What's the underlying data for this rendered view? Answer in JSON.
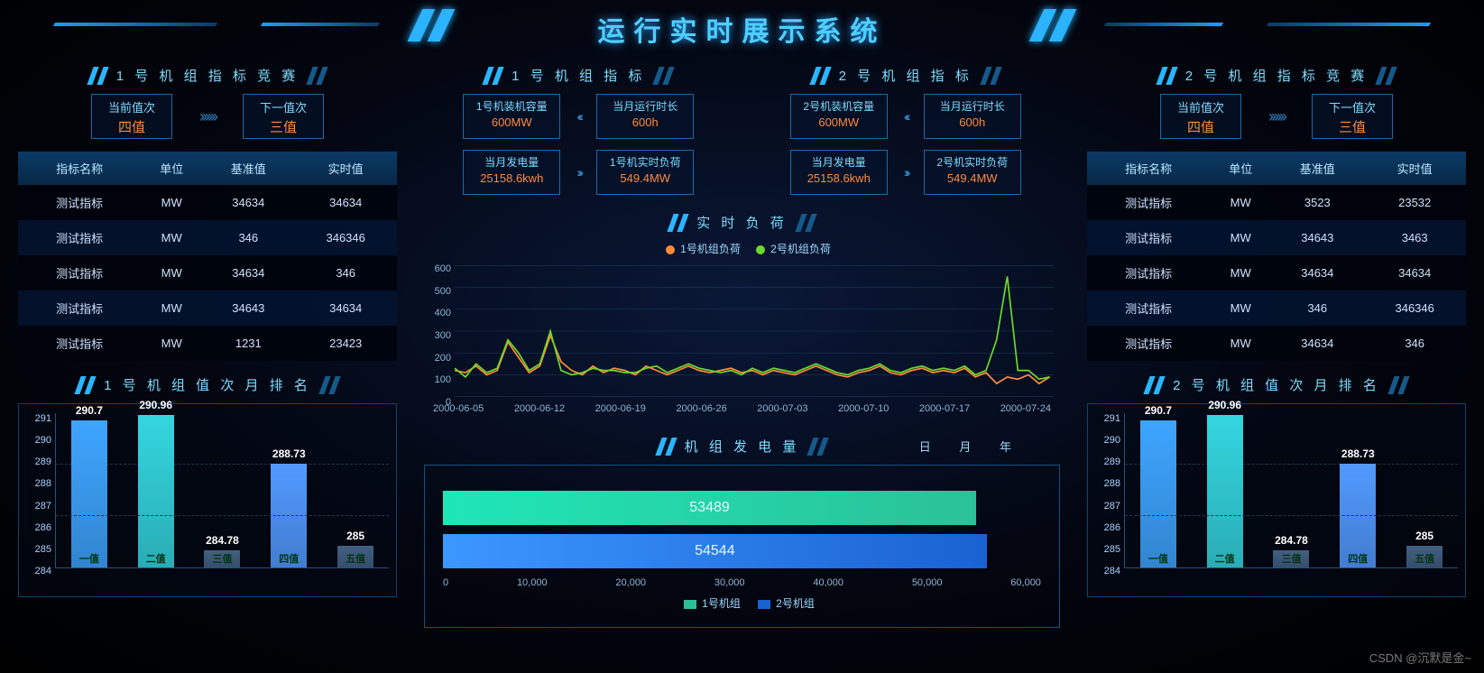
{
  "title": "运行实时展示系统",
  "watermark": "CSDN @沉默是金~",
  "shift": {
    "current_label": "当前值次",
    "next_label": "下一值次",
    "current_value": "四值",
    "next_value": "三值",
    "arrows": "››››››"
  },
  "comp_left": {
    "header": "1 号 机 组 指 标 竞 赛",
    "cols": [
      "指标名称",
      "单位",
      "基准值",
      "实时值"
    ],
    "rows": [
      [
        "测试指标",
        "MW",
        "34634",
        "34634"
      ],
      [
        "测试指标",
        "MW",
        "346",
        "346346"
      ],
      [
        "测试指标",
        "MW",
        "34634",
        "346"
      ],
      [
        "测试指标",
        "MW",
        "34643",
        "34634"
      ],
      [
        "测试指标",
        "MW",
        "1231",
        "23423"
      ]
    ]
  },
  "comp_right": {
    "header": "2 号 机 组 指 标 竞 赛",
    "cols": [
      "指标名称",
      "单位",
      "基准值",
      "实时值"
    ],
    "rows": [
      [
        "测试指标",
        "MW",
        "3523",
        "23532"
      ],
      [
        "测试指标",
        "MW",
        "34643",
        "3463"
      ],
      [
        "测试指标",
        "MW",
        "34634",
        "34634"
      ],
      [
        "测试指标",
        "MW",
        "346",
        "346346"
      ],
      [
        "测试指标",
        "MW",
        "34634",
        "346"
      ]
    ]
  },
  "rank": {
    "left_header": "1 号 机 组 值 次 月 排 名",
    "right_header": "2 号 机 组 值 次 月 排 名",
    "y_ticks": [
      "291",
      "290",
      "289",
      "288",
      "287",
      "286",
      "285",
      "284"
    ],
    "ymin": 284,
    "ymax": 291,
    "categories": [
      "一值",
      "二值",
      "三值",
      "四值",
      "五值"
    ],
    "values": [
      290.7,
      290.96,
      284.78,
      288.73,
      285
    ],
    "colors": [
      "#3ea5ff",
      "#34d6df",
      "#425f82",
      "#529aff",
      "#425f82"
    ],
    "grid_color": "#1a3a58"
  },
  "unit1": {
    "header": "1 号 机 组 指 标",
    "cap_label": "1号机装机容量",
    "cap_value": "600MW",
    "runtime_label": "当月运行时长",
    "runtime_value": "600h",
    "gen_label": "当月发电量",
    "gen_value": "25158.6kwh",
    "load_label": "1号机实时负荷",
    "load_value": "549.4MW",
    "arrow_left": "‹‹‹‹‹‹",
    "arrow_right": "››››››"
  },
  "unit2": {
    "header": "2 号 机 组 指 标",
    "cap_label": "2号机装机容量",
    "cap_value": "600MW",
    "runtime_label": "当月运行时长",
    "runtime_value": "600h",
    "gen_label": "当月发电量",
    "gen_value": "25158.6kwh",
    "load_label": "2号机实时负荷",
    "load_value": "549.4MW"
  },
  "realtime_load": {
    "header": "实 时 负 荷",
    "legend1": "1号机组负荷",
    "legend2": "2号机组负荷",
    "legend1_color": "#ff8a3c",
    "legend2_color": "#6bd92a",
    "y_ticks": [
      "600",
      "500",
      "400",
      "300",
      "200",
      "100",
      "0"
    ],
    "ymin": 0,
    "ymax": 600,
    "x_labels": [
      "2000-06-05",
      "2000-06-12",
      "2000-06-19",
      "2000-06-26",
      "2000-07-03",
      "2000-07-10",
      "2000-07-17",
      "2000-07-24"
    ],
    "series1": [
      120,
      110,
      140,
      100,
      120,
      250,
      180,
      110,
      140,
      280,
      160,
      120,
      100,
      140,
      110,
      130,
      120,
      100,
      140,
      120,
      100,
      120,
      140,
      120,
      110,
      120,
      130,
      110,
      120,
      100,
      120,
      110,
      100,
      120,
      140,
      120,
      100,
      90,
      110,
      120,
      140,
      110,
      100,
      120,
      130,
      110,
      120,
      110,
      130,
      90,
      110,
      60,
      90,
      80,
      100,
      60,
      90
    ],
    "series2": [
      130,
      90,
      150,
      110,
      130,
      260,
      200,
      120,
      150,
      300,
      120,
      100,
      110,
      130,
      120,
      120,
      110,
      110,
      130,
      140,
      110,
      130,
      150,
      130,
      120,
      110,
      120,
      100,
      130,
      110,
      130,
      120,
      110,
      130,
      150,
      130,
      110,
      100,
      120,
      130,
      150,
      120,
      110,
      130,
      140,
      120,
      130,
      120,
      140,
      100,
      120,
      260,
      550,
      120,
      120,
      80,
      90
    ],
    "line_width": 1.5
  },
  "generation": {
    "header": "机 组 发 电 量",
    "opts": "日  月  年",
    "legend1": "1号机组",
    "legend2": "2号机组",
    "bar1_value": 53489,
    "bar2_value": 54544,
    "bar1_label": "53489",
    "bar2_label": "54544",
    "bar1_color_a": "#1fe6b7",
    "bar1_color_b": "#2bc197",
    "bar2_color_a": "#3c97ff",
    "bar2_color_b": "#1a62d1",
    "xmax": 60000,
    "x_ticks": [
      "0",
      "10,000",
      "20,000",
      "30,000",
      "40,000",
      "50,000",
      "60,000"
    ]
  }
}
